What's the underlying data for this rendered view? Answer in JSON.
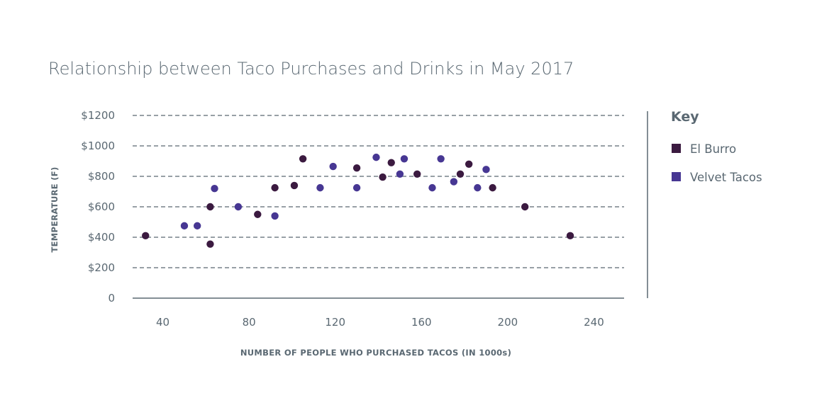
{
  "chart_data": {
    "type": "scatter",
    "title": "Relationship between Taco Purchases and Drinks in May 2017",
    "xlabel": "NUMBER OF PEOPLE WHO PURCHASED TACOS (IN 1000s)",
    "ylabel": "TEMPERATURE (F)",
    "xlim": [
      26,
      254
    ],
    "ylim": [
      0,
      1200
    ],
    "x_ticks": [
      "40",
      "80",
      "120",
      "160",
      "200",
      "240"
    ],
    "x_tick_values": [
      40,
      80,
      120,
      160,
      200,
      240
    ],
    "y_ticks": [
      "0",
      "$200",
      "$400",
      "$600",
      "$800",
      "$1000",
      "$1200"
    ],
    "y_tick_values": [
      0,
      200,
      400,
      600,
      800,
      1000,
      1200
    ],
    "grid": true,
    "legend": {
      "title": "Key",
      "position": "right"
    },
    "series": [
      {
        "name": "El Burro",
        "color": "#3b1a40",
        "points": [
          {
            "x": 32,
            "y": 410
          },
          {
            "x": 62,
            "y": 600
          },
          {
            "x": 62,
            "y": 355
          },
          {
            "x": 84,
            "y": 550
          },
          {
            "x": 92,
            "y": 725
          },
          {
            "x": 101,
            "y": 740
          },
          {
            "x": 105,
            "y": 915
          },
          {
            "x": 130,
            "y": 855
          },
          {
            "x": 142,
            "y": 795
          },
          {
            "x": 146,
            "y": 890
          },
          {
            "x": 158,
            "y": 815
          },
          {
            "x": 178,
            "y": 815
          },
          {
            "x": 182,
            "y": 880
          },
          {
            "x": 193,
            "y": 725
          },
          {
            "x": 208,
            "y": 600
          },
          {
            "x": 229,
            "y": 410
          }
        ]
      },
      {
        "name": "Velvet Tacos",
        "color": "#473793",
        "points": [
          {
            "x": 50,
            "y": 475
          },
          {
            "x": 56,
            "y": 475
          },
          {
            "x": 64,
            "y": 720
          },
          {
            "x": 75,
            "y": 600
          },
          {
            "x": 92,
            "y": 540
          },
          {
            "x": 113,
            "y": 725
          },
          {
            "x": 119,
            "y": 865
          },
          {
            "x": 130,
            "y": 725
          },
          {
            "x": 139,
            "y": 925
          },
          {
            "x": 150,
            "y": 815
          },
          {
            "x": 152,
            "y": 915
          },
          {
            "x": 165,
            "y": 725
          },
          {
            "x": 169,
            "y": 915
          },
          {
            "x": 175,
            "y": 765
          },
          {
            "x": 186,
            "y": 725
          },
          {
            "x": 190,
            "y": 845
          }
        ]
      }
    ]
  }
}
